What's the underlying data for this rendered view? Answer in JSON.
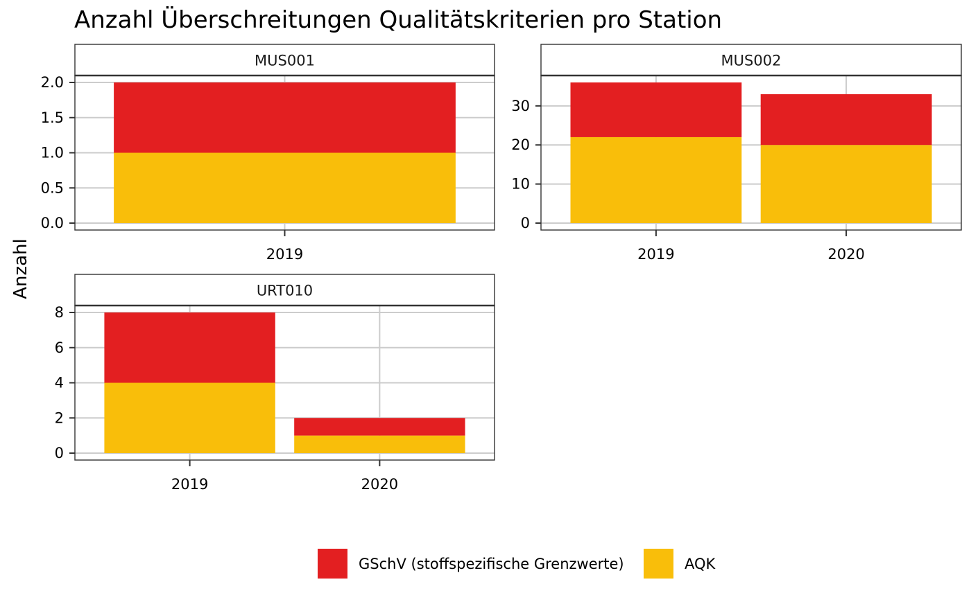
{
  "title": "Anzahl Überschreitungen Qualitätskriterien pro Station",
  "ylabel": "Anzahl",
  "colors": {
    "GSchV": "#e31f21",
    "AQK": "#f9be0a",
    "grid": "#cccccc",
    "axis": "#333333",
    "strip_bg": "#ffffff"
  },
  "legend": {
    "position": "bottom",
    "items": [
      {
        "key": "GSchV",
        "label": "GSchV (stoffspezifische Grenzwerte)"
      },
      {
        "key": "AQK",
        "label": "AQK"
      }
    ]
  },
  "chart_data": [
    {
      "type": "bar",
      "stacked": true,
      "panel": "MUS001",
      "categories": [
        "2019"
      ],
      "series": [
        {
          "name": "AQK",
          "values": [
            1
          ]
        },
        {
          "name": "GSchV (stoffspezifische Grenzwerte)",
          "values": [
            1
          ]
        }
      ],
      "ylim": [
        0,
        2
      ],
      "yticks": [
        0.0,
        0.5,
        1.0,
        1.5,
        2.0
      ],
      "ytick_labels": [
        "0.0",
        "0.5",
        "1.0",
        "1.5",
        "2.0"
      ],
      "grid": true
    },
    {
      "type": "bar",
      "stacked": true,
      "panel": "MUS002",
      "categories": [
        "2019",
        "2020"
      ],
      "series": [
        {
          "name": "AQK",
          "values": [
            22,
            20
          ]
        },
        {
          "name": "GSchV (stoffspezifische Grenzwerte)",
          "values": [
            14,
            13
          ]
        }
      ],
      "ylim": [
        0,
        36
      ],
      "yticks": [
        0,
        10,
        20,
        30
      ],
      "ytick_labels": [
        "0",
        "10",
        "20",
        "30"
      ],
      "grid": true
    },
    {
      "type": "bar",
      "stacked": true,
      "panel": "URT010",
      "categories": [
        "2019",
        "2020"
      ],
      "series": [
        {
          "name": "AQK",
          "values": [
            4,
            1
          ]
        },
        {
          "name": "GSchV (stoffspezifische Grenzwerte)",
          "values": [
            4,
            1
          ]
        }
      ],
      "ylim": [
        0,
        8
      ],
      "yticks": [
        0,
        2,
        4,
        6,
        8
      ],
      "ytick_labels": [
        "0",
        "2",
        "4",
        "6",
        "8"
      ],
      "grid": true
    }
  ]
}
